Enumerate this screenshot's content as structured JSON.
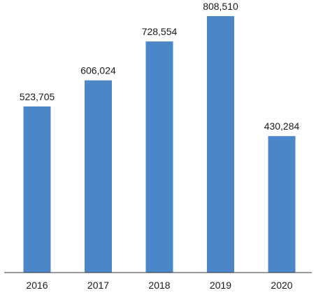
{
  "chart_data": {
    "type": "bar",
    "categories": [
      "2016",
      "2017",
      "2018",
      "2019",
      "2020"
    ],
    "values": [
      523705,
      606024,
      728554,
      808510,
      430284
    ],
    "value_labels": [
      "523,705",
      "606,024",
      "728,554",
      "808,510",
      "430,284"
    ],
    "title": "",
    "xlabel": "",
    "ylabel": "",
    "ylim": [
      0,
      808510
    ],
    "grid": false,
    "legend": "none",
    "bar_color": "#4a86c8",
    "axis_color": "#333333"
  }
}
